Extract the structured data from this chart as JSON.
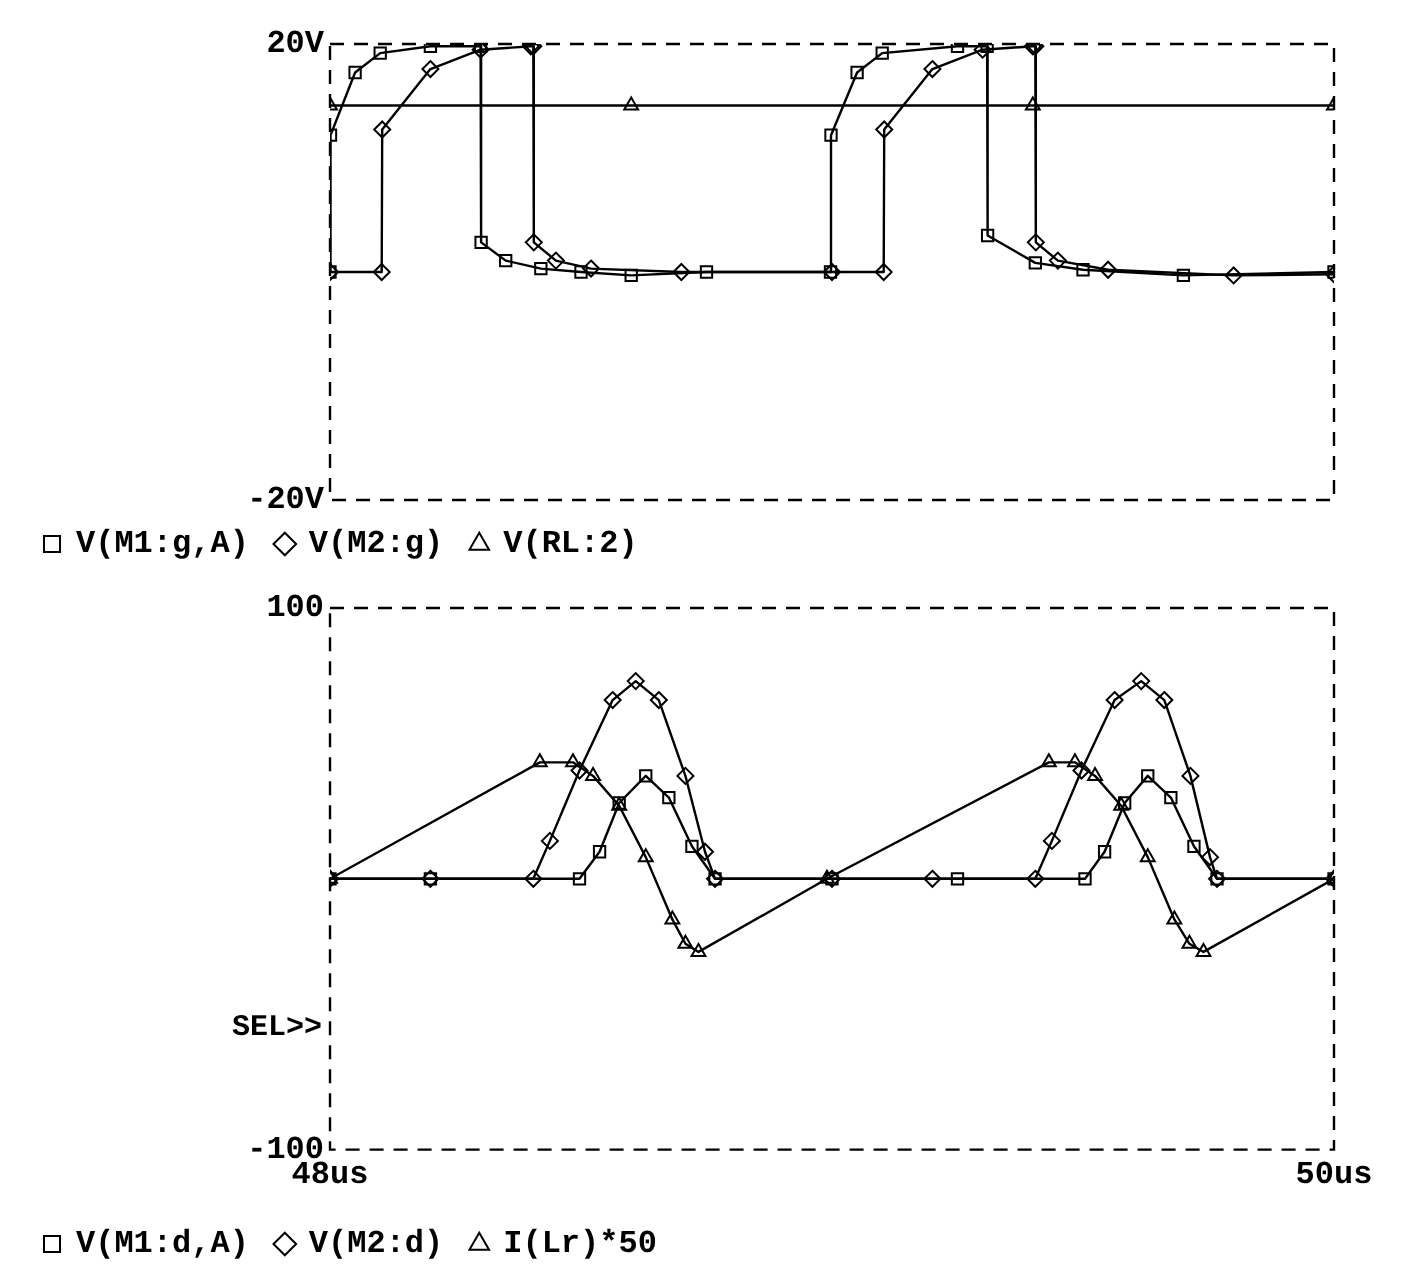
{
  "chart_data": [
    {
      "type": "line",
      "xlim": [
        48,
        50
      ],
      "ylim": [
        -20,
        20
      ],
      "yticks": [
        {
          "value": -20,
          "label": "-20V"
        },
        {
          "value": 20,
          "label": "20V"
        }
      ],
      "tick_labels": "y",
      "grid": false,
      "legend": "bottom",
      "line_style": "solid",
      "series": [
        {
          "name": "V(M1:g,A)",
          "color": "#000000",
          "marker": "square",
          "x": [
            48.0,
            48.001,
            48.05,
            48.1,
            48.2,
            48.3,
            48.301,
            48.35,
            48.42,
            48.5,
            48.6,
            48.75,
            48.997,
            48.998,
            49.05,
            49.1,
            49.25,
            49.309,
            49.31,
            49.405,
            49.5,
            49.7,
            50.0
          ],
          "values": [
            0,
            12,
            17.5,
            19.2,
            19.8,
            19.8,
            2.6,
            1,
            0.3,
            0,
            -0.3,
            0,
            0,
            12,
            17.5,
            19.2,
            19.8,
            19.8,
            3.2,
            0.8,
            0.2,
            -0.3,
            0
          ]
        },
        {
          "name": "V(M2:g)",
          "color": "#000000",
          "marker": "diamond",
          "x": [
            48.0,
            48.103,
            48.104,
            48.2,
            48.3,
            48.4,
            48.405,
            48.406,
            48.45,
            48.52,
            48.7,
            49.0,
            49.103,
            49.104,
            49.2,
            49.3,
            49.4,
            49.405,
            49.406,
            49.45,
            49.55,
            49.8,
            50.0
          ],
          "values": [
            0,
            0,
            12.5,
            17.8,
            19.5,
            19.8,
            19.8,
            2.6,
            1,
            0.3,
            0,
            0,
            0,
            12.5,
            17.8,
            19.5,
            19.8,
            19.8,
            2.6,
            1,
            0.2,
            -0.3,
            -0.2
          ]
        },
        {
          "name": "V(RL:2)",
          "color": "#000000",
          "marker": "triangle",
          "x": [
            48.0,
            48.6,
            49.4,
            50.0
          ],
          "values": [
            14.6,
            14.6,
            14.6,
            14.6
          ]
        }
      ]
    },
    {
      "type": "line",
      "xlim": [
        48,
        50
      ],
      "ylim": [
        -100,
        100
      ],
      "xticks": [
        {
          "value": 48,
          "label": "48us"
        },
        {
          "value": 50,
          "label": "50us"
        }
      ],
      "yticks": [
        -100,
        100
      ],
      "grid": false,
      "legend": "bottom",
      "line_style": "solid",
      "annotations": [
        "SEL>>"
      ],
      "series": [
        {
          "name": "V(M1:d,A)",
          "color": "#000000",
          "marker": "square",
          "x": [
            48.0,
            48.2,
            48.497,
            48.537,
            48.576,
            48.629,
            48.675,
            48.721,
            48.767,
            49.0,
            49.25,
            49.504,
            49.543,
            49.583,
            49.629,
            49.675,
            49.721,
            49.767,
            50.0
          ],
          "values": [
            0,
            0,
            0,
            10,
            28,
            38,
            30,
            12,
            0,
            0,
            0,
            0,
            10,
            28,
            38,
            30,
            12,
            0,
            0
          ]
        },
        {
          "name": "V(M2:d)",
          "color": "#000000",
          "marker": "diamond",
          "x": [
            48.0,
            48.2,
            48.405,
            48.438,
            48.497,
            48.563,
            48.609,
            48.655,
            48.708,
            48.747,
            48.767,
            49.0,
            49.2,
            49.405,
            49.438,
            49.497,
            49.563,
            49.616,
            49.662,
            49.714,
            49.753,
            49.767,
            50.0
          ],
          "values": [
            0,
            0,
            0,
            14,
            40,
            66,
            73,
            66,
            38,
            10,
            0,
            0,
            0,
            0,
            14,
            40,
            66,
            73,
            66,
            38,
            8,
            0,
            0
          ]
        },
        {
          "name": "I(Lr)*50",
          "color": "#000000",
          "marker": "triangle",
          "x": [
            48.0,
            48.418,
            48.484,
            48.524,
            48.576,
            48.629,
            48.682,
            48.708,
            48.734,
            48.99,
            49.432,
            49.484,
            49.524,
            49.576,
            49.629,
            49.682,
            49.712,
            49.74,
            50.0
          ],
          "values": [
            0,
            43,
            43,
            38,
            27,
            8,
            -15,
            -24,
            -27,
            0,
            43,
            43,
            38,
            27,
            8,
            -15,
            -24,
            -27,
            0
          ]
        }
      ]
    }
  ]
}
